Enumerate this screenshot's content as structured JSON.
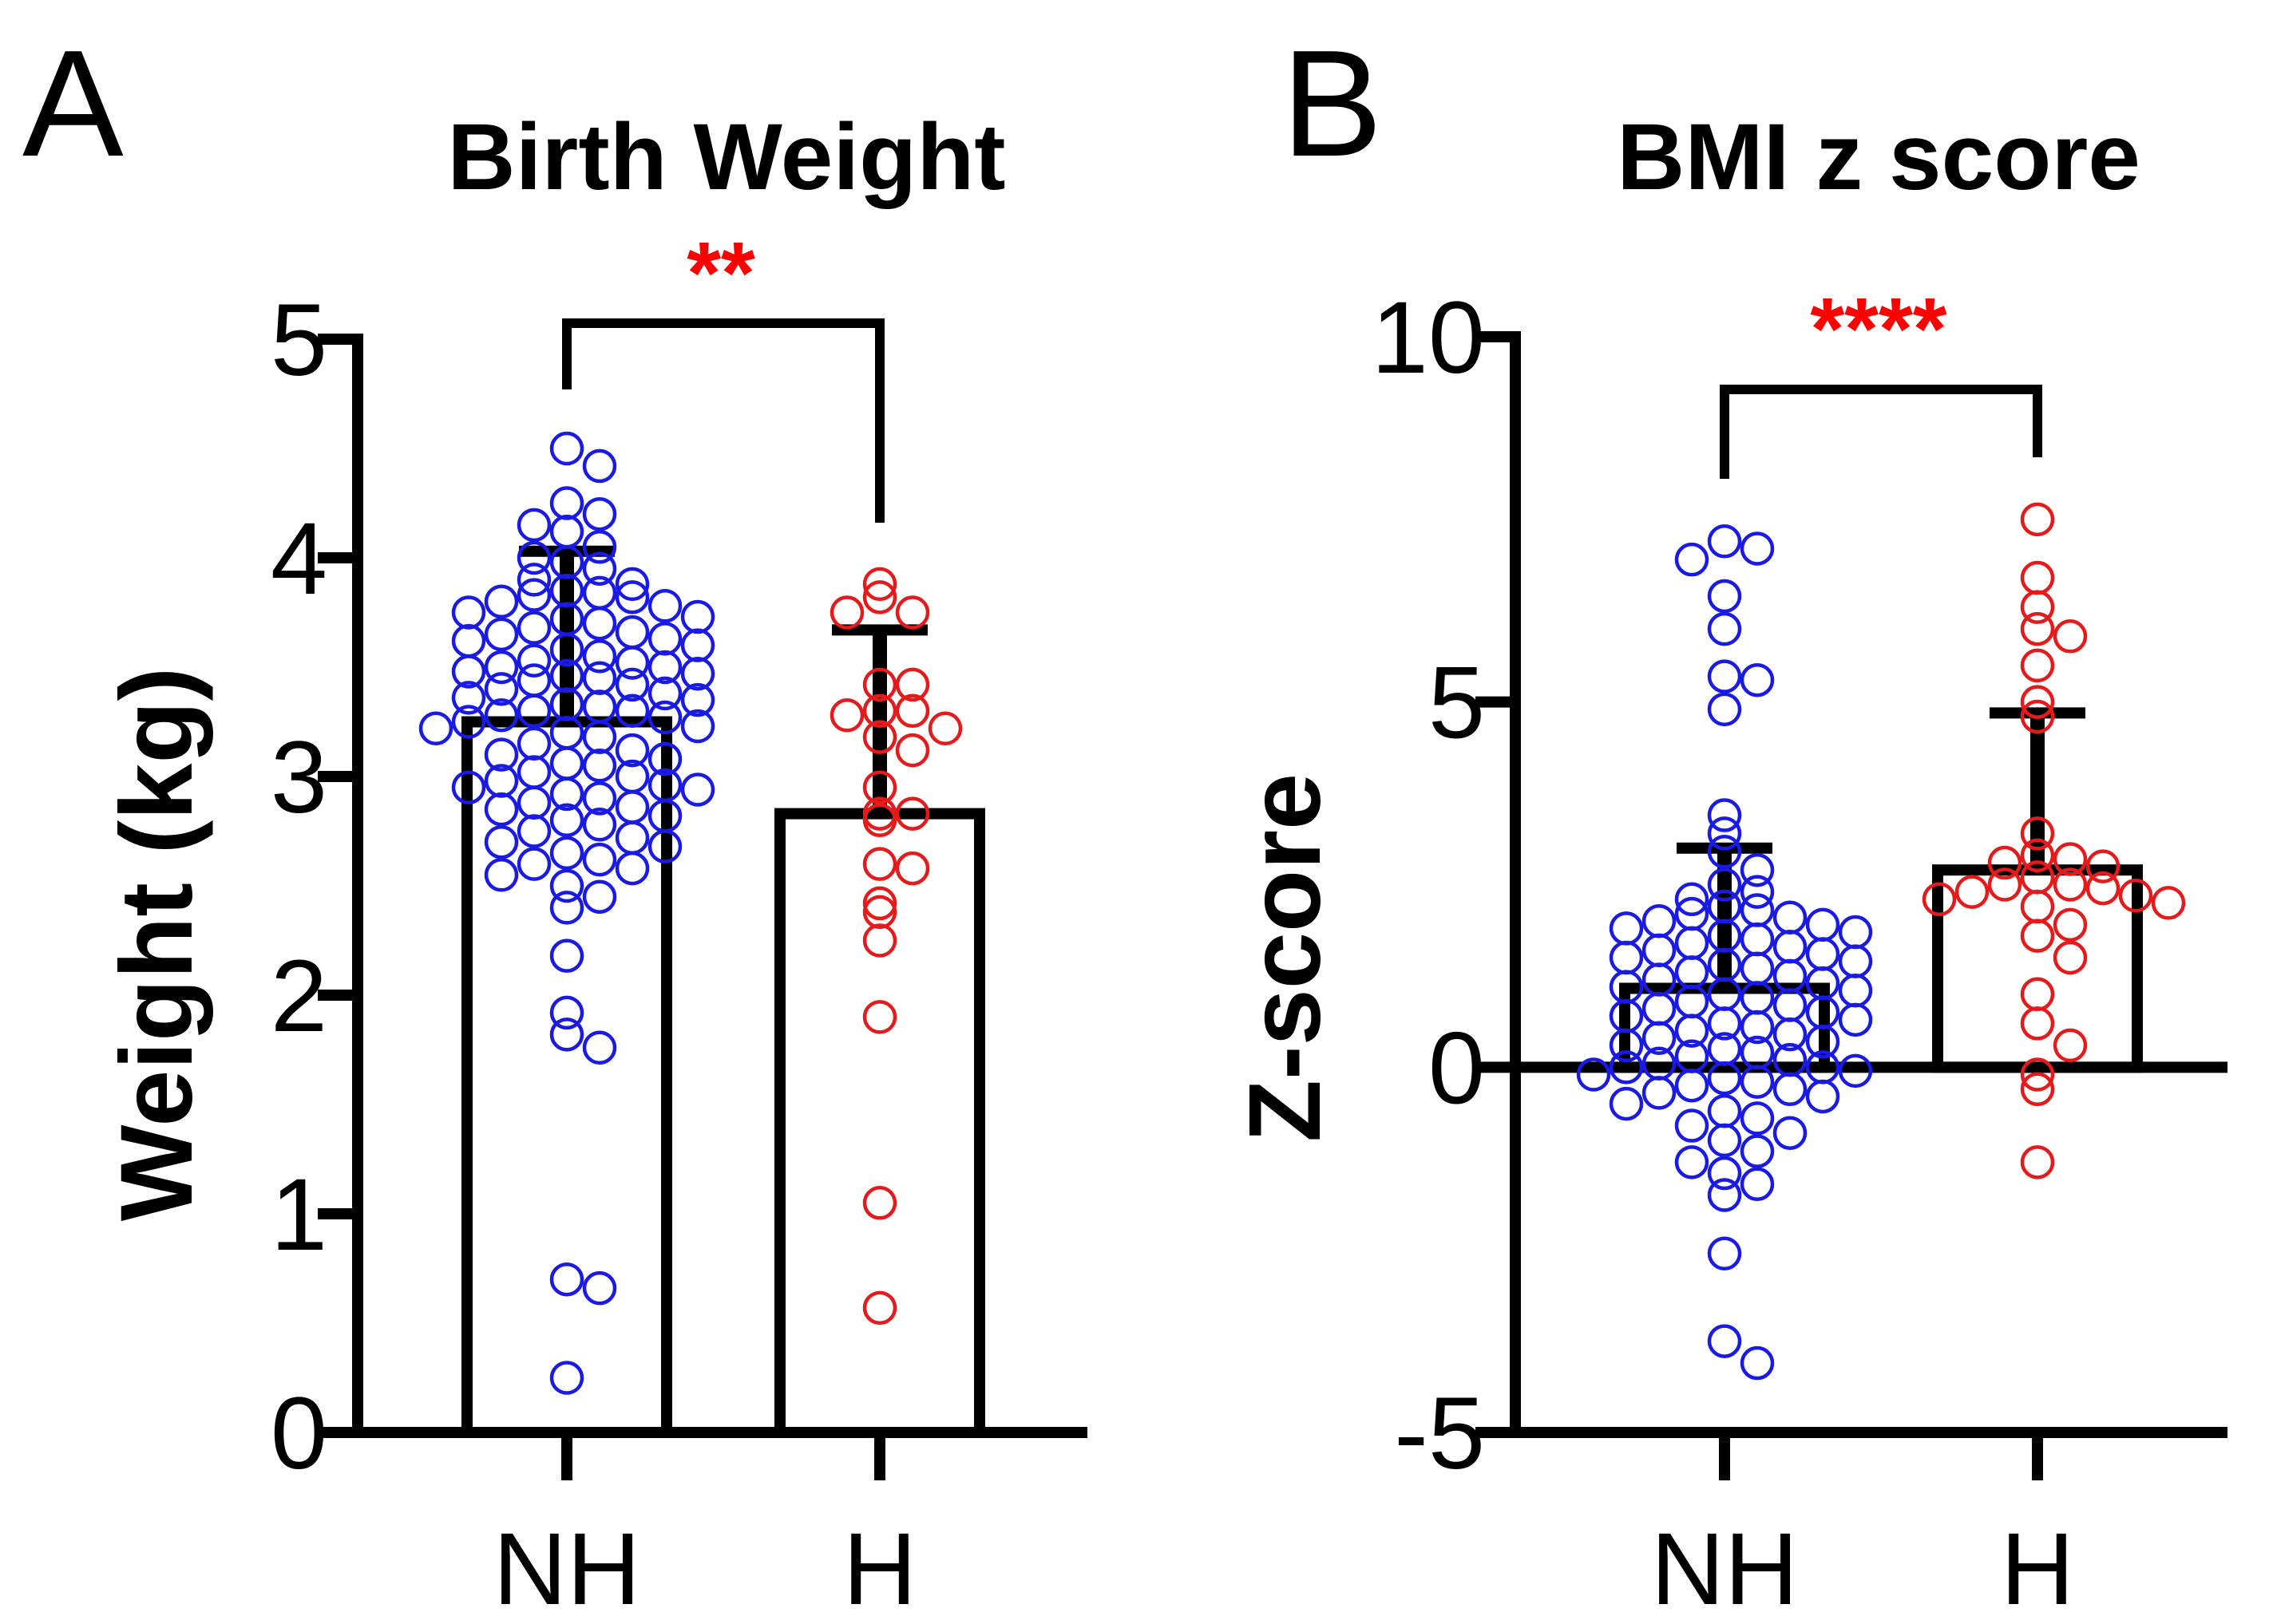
{
  "panels": {
    "a": {
      "letter": "A"
    },
    "b": {
      "letter": "B"
    }
  },
  "colors": {
    "nh": "#1a1ae6",
    "h": "#e61a1a",
    "sig": "#ff0000",
    "ink": "#000000"
  },
  "chart_data": [
    {
      "type": "bar",
      "title": "Birth Weight",
      "xlabel": "",
      "ylabel": "Weight (kg)",
      "ylim": [
        0,
        5
      ],
      "yticks": [
        "0",
        "1",
        "2",
        "3",
        "4",
        "5"
      ],
      "categories": [
        "NH",
        "H"
      ],
      "series": [
        {
          "name": "NH",
          "mean": 3.25,
          "sd_upper": 4.03,
          "points": [
            4.5,
            4.42,
            4.25,
            4.2,
            4.15,
            4.12,
            4.05,
            4.0,
            3.98,
            3.95,
            3.9,
            3.88,
            3.85,
            3.84,
            3.83,
            3.82,
            3.8,
            3.78,
            3.75,
            3.73,
            3.72,
            3.7,
            3.68,
            3.66,
            3.65,
            3.63,
            3.62,
            3.6,
            3.58,
            3.55,
            3.53,
            3.52,
            3.5,
            3.5,
            3.48,
            3.47,
            3.46,
            3.45,
            3.44,
            3.42,
            3.4,
            3.38,
            3.36,
            3.35,
            3.33,
            3.32,
            3.3,
            3.3,
            3.28,
            3.27,
            3.25,
            3.23,
            3.22,
            3.2,
            3.18,
            3.15,
            3.12,
            3.1,
            3.08,
            3.06,
            3.05,
            3.02,
            3.0,
            2.98,
            2.96,
            2.95,
            2.94,
            2.92,
            2.9,
            2.88,
            2.86,
            2.85,
            2.82,
            2.8,
            2.78,
            2.75,
            2.72,
            2.7,
            2.68,
            2.65,
            2.62,
            2.6,
            2.58,
            2.55,
            2.5,
            2.45,
            2.4,
            2.18,
            1.92,
            1.82,
            1.76,
            0.7,
            0.66,
            0.25
          ]
        },
        {
          "name": "H",
          "mean": 2.83,
          "sd_upper": 3.67,
          "points": [
            3.88,
            3.82,
            3.75,
            3.75,
            3.42,
            3.42,
            3.3,
            3.3,
            3.28,
            3.22,
            3.18,
            3.12,
            2.95,
            2.83,
            2.83,
            2.8,
            2.6,
            2.58,
            2.42,
            2.38,
            2.25,
            1.9,
            1.05,
            0.57
          ]
        }
      ],
      "significance": "**"
    },
    {
      "type": "bar",
      "title": "BMI z score",
      "xlabel": "",
      "ylabel": "Z-score",
      "ylim": [
        -5,
        10
      ],
      "yticks": [
        "-5",
        "0",
        "5",
        "10"
      ],
      "categories": [
        "NH",
        "H"
      ],
      "series": [
        {
          "name": "NH",
          "mean": 1.08,
          "sd_upper": 3.0,
          "points": [
            7.2,
            7.1,
            6.95,
            6.45,
            6.0,
            5.35,
            5.3,
            4.9,
            3.45,
            3.2,
            2.95,
            2.7,
            2.5,
            2.4,
            2.3,
            2.2,
            2.15,
            2.1,
            2.05,
            2.0,
            1.95,
            1.9,
            1.85,
            1.8,
            1.75,
            1.7,
            1.65,
            1.6,
            1.55,
            1.5,
            1.45,
            1.4,
            1.35,
            1.3,
            1.25,
            1.2,
            1.15,
            1.1,
            1.05,
            1.0,
            0.95,
            0.9,
            0.85,
            0.8,
            0.75,
            0.7,
            0.65,
            0.6,
            0.55,
            0.5,
            0.45,
            0.4,
            0.35,
            0.3,
            0.25,
            0.2,
            0.15,
            0.1,
            0.05,
            0.0,
            0.0,
            -0.05,
            -0.1,
            -0.15,
            -0.2,
            -0.25,
            -0.3,
            -0.35,
            -0.4,
            -0.5,
            -0.6,
            -0.7,
            -0.8,
            -0.9,
            -1.0,
            -1.15,
            -1.3,
            -1.45,
            -1.6,
            -1.75,
            -2.55,
            -3.75,
            -4.05
          ]
        },
        {
          "name": "H",
          "mean": 2.7,
          "sd_upper": 4.85,
          "points": [
            7.5,
            6.7,
            6.3,
            6.0,
            5.9,
            5.5,
            5.0,
            4.8,
            3.2,
            2.9,
            2.85,
            2.8,
            2.75,
            2.6,
            2.5,
            2.5,
            2.45,
            2.4,
            2.35,
            2.3,
            2.25,
            2.2,
            1.95,
            1.8,
            1.5,
            1.0,
            0.6,
            0.3,
            -0.1,
            -0.3,
            -1.3
          ]
        }
      ],
      "significance": "****"
    }
  ]
}
